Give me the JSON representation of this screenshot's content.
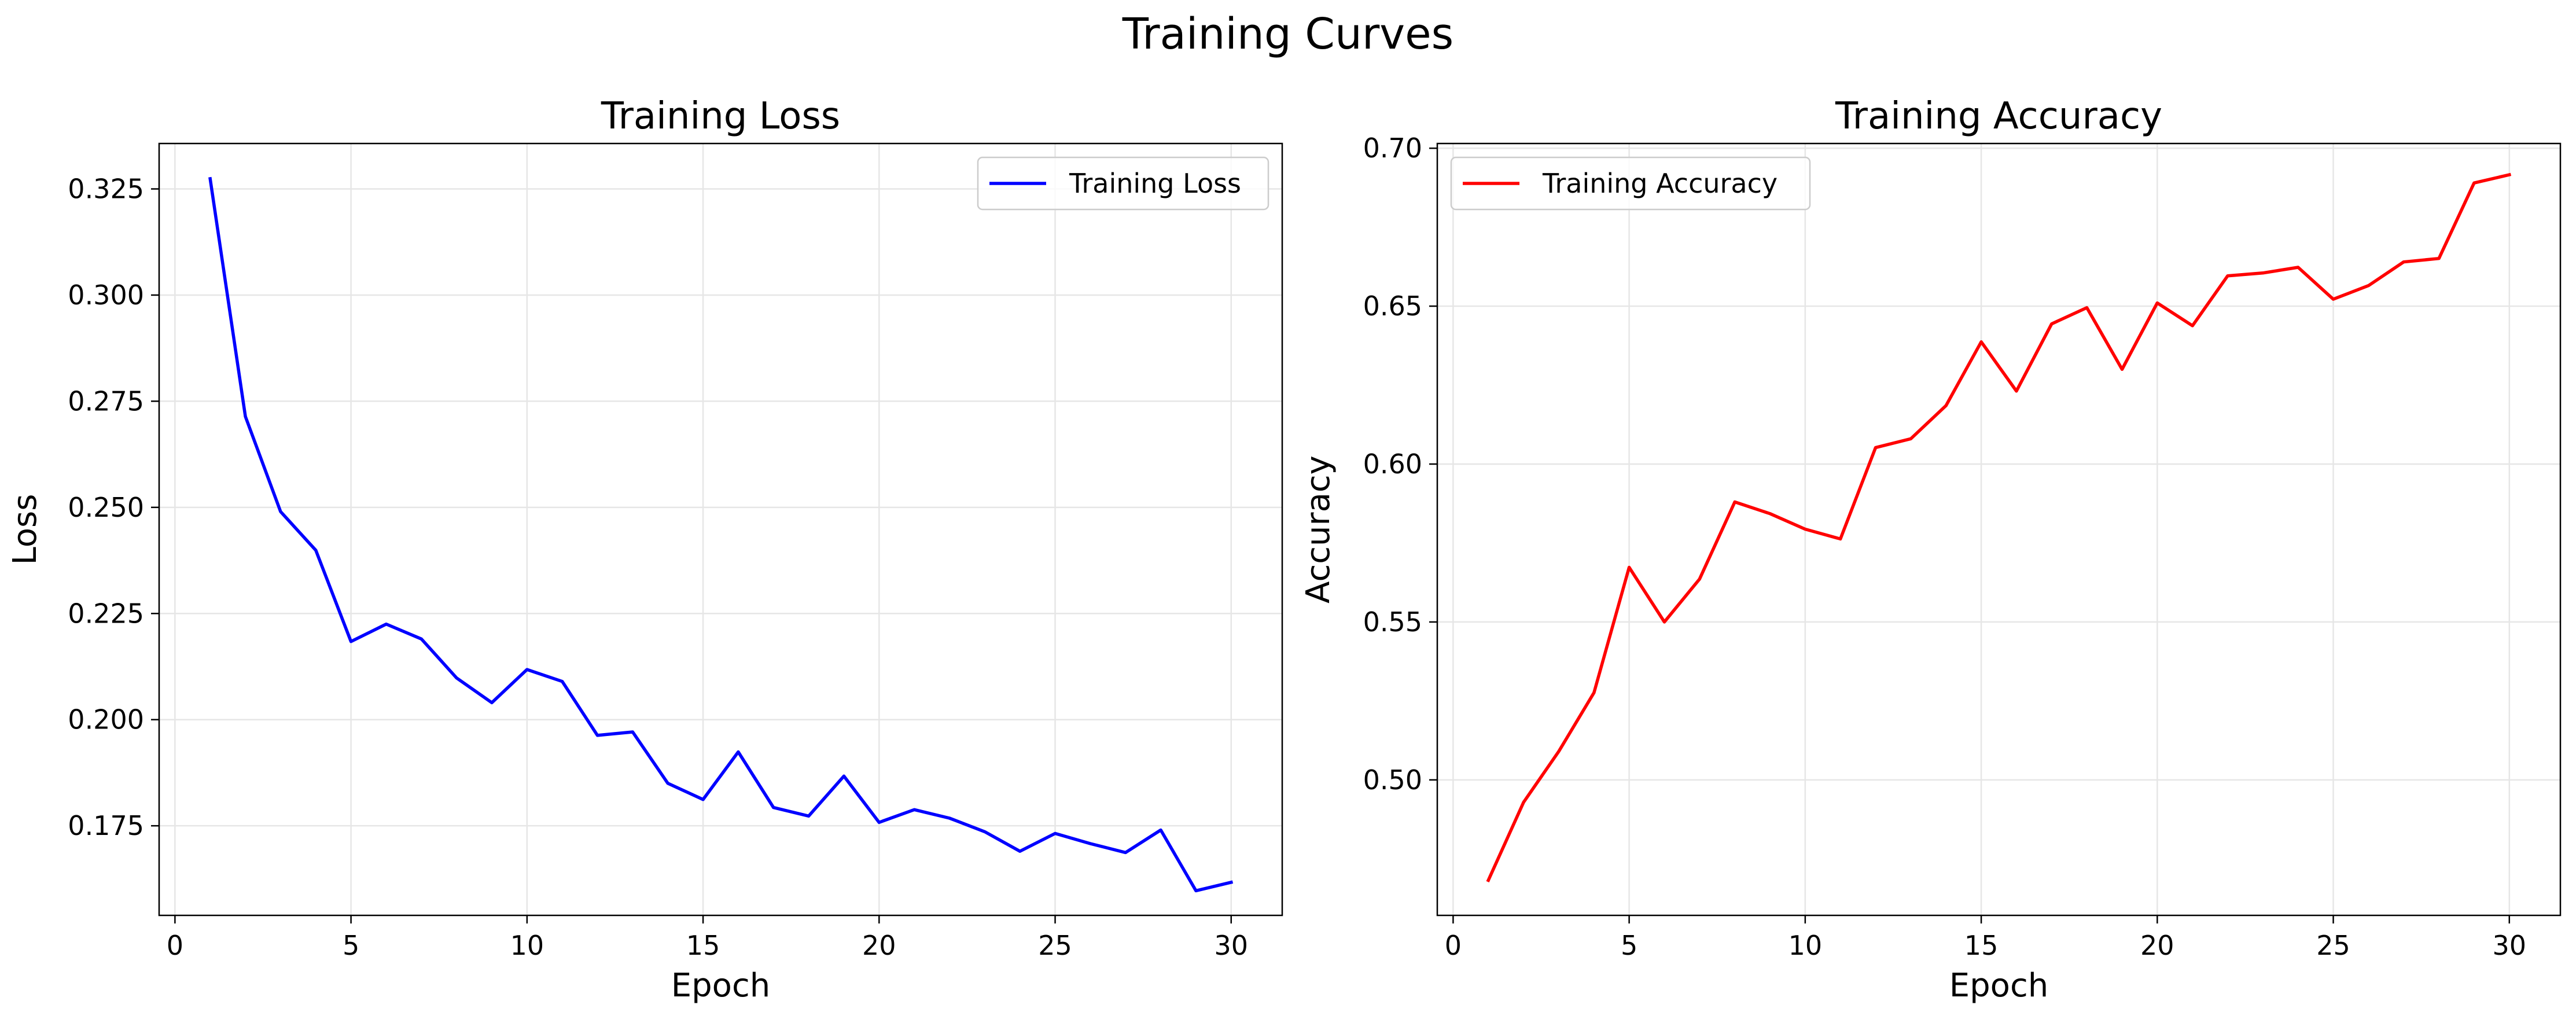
{
  "figure": {
    "title": "Training Curves"
  },
  "chart_data": [
    {
      "type": "line",
      "title": "Training Loss",
      "xlabel": "Epoch",
      "ylabel": "Loss",
      "xlim": [
        -0.45,
        31.45
      ],
      "ylim": [
        0.1539,
        0.3357
      ],
      "xticks": [
        0,
        5,
        10,
        15,
        20,
        25,
        30
      ],
      "xtick_labels": [
        "0",
        "5",
        "10",
        "15",
        "20",
        "25",
        "30"
      ],
      "yticks": [
        0.175,
        0.2,
        0.225,
        0.25,
        0.275,
        0.3,
        0.325
      ],
      "ytick_labels": [
        "0.175",
        "0.200",
        "0.225",
        "0.250",
        "0.275",
        "0.300",
        "0.325"
      ],
      "grid": true,
      "legend_position": "upper right",
      "series": [
        {
          "name": "Training Loss",
          "color": "#0000ff",
          "x": [
            1,
            2,
            3,
            4,
            5,
            6,
            7,
            8,
            9,
            10,
            11,
            12,
            13,
            14,
            15,
            16,
            17,
            18,
            19,
            20,
            21,
            22,
            23,
            24,
            25,
            26,
            27,
            28,
            29,
            30
          ],
          "values": [
            0.3274,
            0.2714,
            0.249,
            0.2399,
            0.2184,
            0.2225,
            0.219,
            0.2098,
            0.204,
            0.2118,
            0.209,
            0.1963,
            0.1971,
            0.185,
            0.1812,
            0.1924,
            0.1793,
            0.1773,
            0.1867,
            0.1758,
            0.1788,
            0.1768,
            0.1736,
            0.169,
            0.1732,
            0.1708,
            0.1687,
            0.174,
            0.1597,
            0.1617
          ]
        }
      ]
    },
    {
      "type": "line",
      "title": "Training Accuracy",
      "xlabel": "Epoch",
      "ylabel": "Accuracy",
      "xlim": [
        -0.45,
        31.45
      ],
      "ylim": [
        0.4571,
        0.7015
      ],
      "xticks": [
        0,
        5,
        10,
        15,
        20,
        25,
        30
      ],
      "xtick_labels": [
        "0",
        "5",
        "10",
        "15",
        "20",
        "25",
        "30"
      ],
      "yticks": [
        0.5,
        0.55,
        0.6,
        0.65,
        0.7
      ],
      "ytick_labels": [
        "0.50",
        "0.55",
        "0.60",
        "0.65",
        "0.70"
      ],
      "grid": true,
      "legend_position": "upper left",
      "series": [
        {
          "name": "Training Accuracy",
          "color": "#ff0000",
          "x": [
            1,
            2,
            3,
            4,
            5,
            6,
            7,
            8,
            9,
            10,
            11,
            12,
            13,
            14,
            15,
            16,
            17,
            18,
            19,
            20,
            21,
            22,
            23,
            24,
            25,
            26,
            27,
            28,
            29,
            30
          ],
          "values": [
            0.4682,
            0.4929,
            0.509,
            0.5276,
            0.5673,
            0.55,
            0.5636,
            0.588,
            0.5843,
            0.5794,
            0.5763,
            0.6052,
            0.608,
            0.6185,
            0.6387,
            0.6231,
            0.6444,
            0.6495,
            0.63,
            0.651,
            0.6438,
            0.6596,
            0.6605,
            0.6623,
            0.6522,
            0.6565,
            0.664,
            0.6651,
            0.689,
            0.6916
          ]
        }
      ]
    }
  ]
}
